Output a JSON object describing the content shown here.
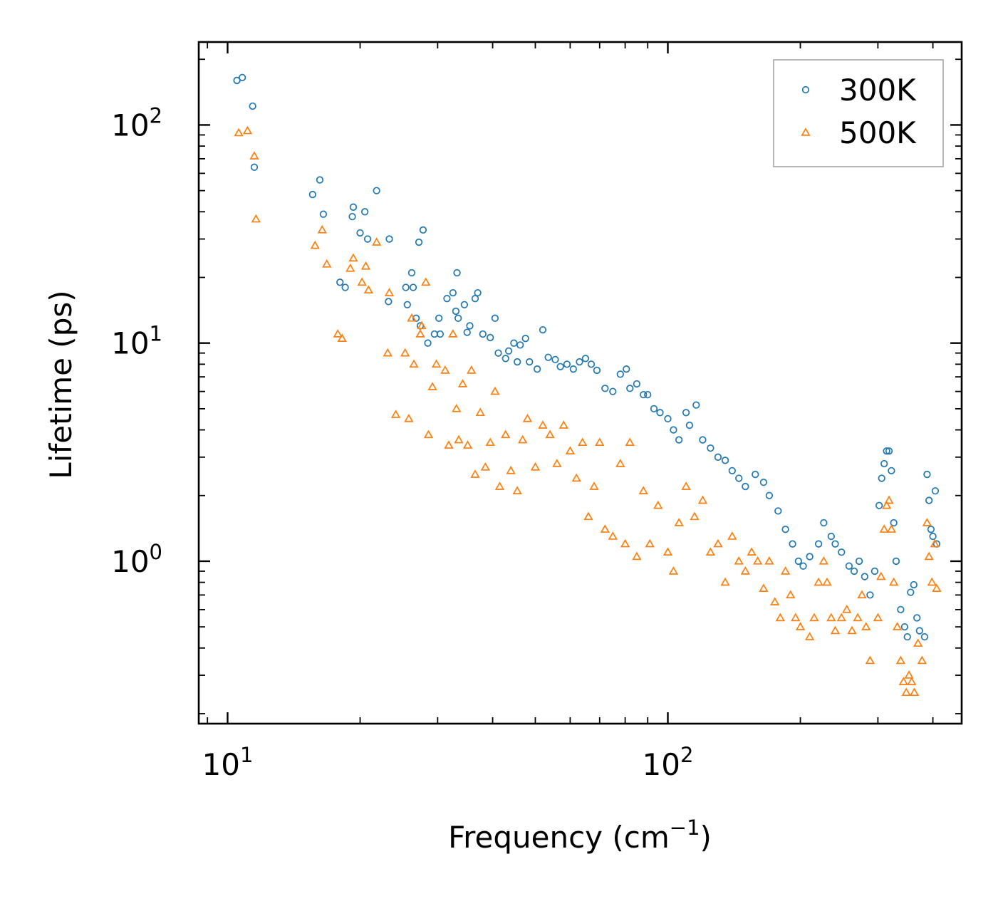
{
  "chart_data": {
    "type": "scatter",
    "title": "",
    "xlabel": "Frequency (cm",
    "xlabel_sup": "−1",
    "xlabel_end": ")",
    "ylabel": "Lifetime (ps)",
    "xscale": "log",
    "yscale": "log",
    "xlim": [
      8.6,
      465
    ],
    "ylim": [
      0.18,
      240
    ],
    "x_ticks": [
      {
        "value": 10,
        "base": "10",
        "exp": "1"
      },
      {
        "value": 100,
        "base": "10",
        "exp": "2"
      }
    ],
    "y_ticks": [
      {
        "value": 1,
        "base": "10",
        "exp": "0"
      },
      {
        "value": 10,
        "base": "10",
        "exp": "1"
      },
      {
        "value": 100,
        "base": "10",
        "exp": "2"
      }
    ],
    "legend_position": "top-right",
    "series": [
      {
        "name": "300K",
        "color": "#1f77b4",
        "marker": "circle-open",
        "points": [
          [
            10.5,
            160
          ],
          [
            10.8,
            165
          ],
          [
            11.4,
            122
          ],
          [
            11.5,
            64
          ],
          [
            15.6,
            48
          ],
          [
            16.2,
            56
          ],
          [
            16.5,
            39
          ],
          [
            18,
            19
          ],
          [
            18.5,
            18
          ],
          [
            19.2,
            38
          ],
          [
            19.3,
            42
          ],
          [
            20,
            32
          ],
          [
            20.5,
            40
          ],
          [
            20.8,
            30
          ],
          [
            21.8,
            50
          ],
          [
            23.2,
            15.5
          ],
          [
            23.3,
            30
          ],
          [
            25.4,
            18
          ],
          [
            25.6,
            15
          ],
          [
            26.2,
            21
          ],
          [
            26.4,
            18
          ],
          [
            26.8,
            13
          ],
          [
            27.2,
            29
          ],
          [
            27.4,
            12
          ],
          [
            27.8,
            33
          ],
          [
            28.5,
            10
          ],
          [
            29.5,
            11
          ],
          [
            30.2,
            13
          ],
          [
            30.4,
            11
          ],
          [
            31.5,
            16
          ],
          [
            32.5,
            17
          ],
          [
            33,
            14
          ],
          [
            33.2,
            21
          ],
          [
            33.4,
            13
          ],
          [
            34.5,
            15
          ],
          [
            35,
            11.2
          ],
          [
            35.5,
            12
          ],
          [
            36.5,
            16
          ],
          [
            37,
            17
          ],
          [
            38,
            11
          ],
          [
            39.5,
            10.6
          ],
          [
            40.5,
            13
          ],
          [
            41.2,
            9
          ],
          [
            42.8,
            8.5
          ],
          [
            43.5,
            9.2
          ],
          [
            44.7,
            10
          ],
          [
            45.5,
            8.2
          ],
          [
            46.2,
            9.8
          ],
          [
            47.5,
            10.5
          ],
          [
            48.5,
            8.2
          ],
          [
            50.5,
            7.6
          ],
          [
            52,
            11.5
          ],
          [
            53.5,
            8.6
          ],
          [
            55.5,
            8.4
          ],
          [
            57,
            7.8
          ],
          [
            59,
            8
          ],
          [
            61,
            7.6
          ],
          [
            63,
            8.2
          ],
          [
            65,
            8.5
          ],
          [
            67,
            8
          ],
          [
            69,
            7.5
          ],
          [
            72,
            6.2
          ],
          [
            75,
            6
          ],
          [
            78,
            7.2
          ],
          [
            80.5,
            7.6
          ],
          [
            82,
            6.2
          ],
          [
            85,
            6.5
          ],
          [
            88,
            5.8
          ],
          [
            90,
            5.8
          ],
          [
            93,
            5
          ],
          [
            96,
            4.8
          ],
          [
            100,
            4.5
          ],
          [
            103,
            4
          ],
          [
            106,
            3.6
          ],
          [
            110,
            4.8
          ],
          [
            112,
            4.2
          ],
          [
            116,
            5.2
          ],
          [
            120,
            3.6
          ],
          [
            125,
            3.3
          ],
          [
            130,
            3
          ],
          [
            135,
            2.9
          ],
          [
            140,
            2.6
          ],
          [
            145,
            2.4
          ],
          [
            150,
            2.2
          ],
          [
            158,
            2.5
          ],
          [
            165,
            2.3
          ],
          [
            170,
            2
          ],
          [
            178,
            1.7
          ],
          [
            185,
            1.4
          ],
          [
            192,
            1.2
          ],
          [
            198,
            1.0
          ],
          [
            203,
            0.95
          ],
          [
            210,
            1.05
          ],
          [
            220,
            1.2
          ],
          [
            226,
            1.5
          ],
          [
            235,
            1.3
          ],
          [
            240,
            1.2
          ],
          [
            248,
            1.1
          ],
          [
            258,
            0.95
          ],
          [
            265,
            0.9
          ],
          [
            272,
            1.0
          ],
          [
            280,
            0.85
          ],
          [
            288,
            0.7
          ],
          [
            295,
            0.9
          ],
          [
            302,
            1.8
          ],
          [
            306,
            2.4
          ],
          [
            310,
            2.8
          ],
          [
            314,
            3.2
          ],
          [
            318,
            3.2
          ],
          [
            322,
            2.6
          ],
          [
            326,
            1.5
          ],
          [
            330,
            1.0
          ],
          [
            338,
            0.6
          ],
          [
            345,
            0.5
          ],
          [
            350,
            0.45
          ],
          [
            356,
            0.72
          ],
          [
            362,
            0.78
          ],
          [
            368,
            0.55
          ],
          [
            373,
            0.48
          ],
          [
            383,
            0.45
          ],
          [
            388,
            2.5
          ],
          [
            392,
            1.9
          ],
          [
            396,
            1.4
          ],
          [
            400,
            1.3
          ],
          [
            405,
            2.1
          ],
          [
            408,
            1.2
          ]
        ]
      },
      {
        "name": "500K",
        "color": "#ff7f0e",
        "marker": "triangle-open",
        "points": [
          [
            10.6,
            92
          ],
          [
            11.1,
            94
          ],
          [
            11.5,
            72
          ],
          [
            11.6,
            37
          ],
          [
            15.8,
            28
          ],
          [
            16.4,
            33
          ],
          [
            16.8,
            23
          ],
          [
            17.8,
            11
          ],
          [
            18.2,
            10.5
          ],
          [
            19,
            22
          ],
          [
            19.3,
            24.5
          ],
          [
            20.2,
            19
          ],
          [
            20.6,
            22.5
          ],
          [
            20.9,
            17.5
          ],
          [
            21.8,
            29
          ],
          [
            23.1,
            9
          ],
          [
            23.3,
            17
          ],
          [
            24.1,
            4.7
          ],
          [
            25.3,
            9
          ],
          [
            25.8,
            4.5
          ],
          [
            26.2,
            13
          ],
          [
            26.5,
            8
          ],
          [
            27.4,
            11
          ],
          [
            27.6,
            12
          ],
          [
            28.2,
            19
          ],
          [
            28.6,
            3.8
          ],
          [
            29.2,
            6.3
          ],
          [
            29.8,
            8
          ],
          [
            31.2,
            7.5
          ],
          [
            31.8,
            3.4
          ],
          [
            32.5,
            11
          ],
          [
            33.1,
            5
          ],
          [
            33.5,
            3.6
          ],
          [
            34.2,
            6.5
          ],
          [
            35.1,
            3.4
          ],
          [
            35.8,
            7.5
          ],
          [
            36.5,
            2.5
          ],
          [
            37.5,
            4.8
          ],
          [
            38.5,
            2.7
          ],
          [
            39.5,
            3.5
          ],
          [
            40.5,
            6
          ],
          [
            41.5,
            2.2
          ],
          [
            42.8,
            3.8
          ],
          [
            44,
            2.6
          ],
          [
            45.5,
            2.1
          ],
          [
            46.8,
            3.6
          ],
          [
            48,
            4.5
          ],
          [
            50,
            2.7
          ],
          [
            52,
            4.2
          ],
          [
            54,
            3.8
          ],
          [
            56,
            2.8
          ],
          [
            58,
            4.2
          ],
          [
            60,
            3.2
          ],
          [
            62,
            2.4
          ],
          [
            64,
            3.5
          ],
          [
            66,
            1.6
          ],
          [
            68,
            2.2
          ],
          [
            70,
            3.5
          ],
          [
            72,
            1.4
          ],
          [
            75,
            1.3
          ],
          [
            78,
            2.8
          ],
          [
            80,
            1.2
          ],
          [
            82,
            3.5
          ],
          [
            85,
            1.05
          ],
          [
            88,
            2.1
          ],
          [
            91,
            1.2
          ],
          [
            95,
            1.8
          ],
          [
            100,
            1.1
          ],
          [
            103,
            0.9
          ],
          [
            106,
            1.5
          ],
          [
            110,
            2.2
          ],
          [
            115,
            1.6
          ],
          [
            120,
            1.9
          ],
          [
            125,
            1.1
          ],
          [
            130,
            1.2
          ],
          [
            135,
            0.8
          ],
          [
            140,
            1.3
          ],
          [
            145,
            1.0
          ],
          [
            150,
            0.9
          ],
          [
            155,
            1.1
          ],
          [
            160,
            1.0
          ],
          [
            165,
            0.75
          ],
          [
            170,
            1.0
          ],
          [
            175,
            0.65
          ],
          [
            180,
            0.55
          ],
          [
            185,
            0.9
          ],
          [
            190,
            0.7
          ],
          [
            195,
            0.55
          ],
          [
            200,
            0.5
          ],
          [
            210,
            0.45
          ],
          [
            215,
            0.55
          ],
          [
            220,
            0.8
          ],
          [
            226,
            1.0
          ],
          [
            230,
            0.8
          ],
          [
            235,
            0.55
          ],
          [
            240,
            0.48
          ],
          [
            248,
            0.55
          ],
          [
            255,
            0.6
          ],
          [
            262,
            0.48
          ],
          [
            270,
            0.55
          ],
          [
            276,
            0.7
          ],
          [
            282,
            0.5
          ],
          [
            288,
            0.35
          ],
          [
            300,
            0.55
          ],
          [
            305,
            0.85
          ],
          [
            310,
            1.4
          ],
          [
            314,
            1.8
          ],
          [
            318,
            1.9
          ],
          [
            322,
            1.4
          ],
          [
            326,
            0.8
          ],
          [
            332,
            0.5
          ],
          [
            338,
            0.35
          ],
          [
            343,
            0.28
          ],
          [
            348,
            0.25
          ],
          [
            353,
            0.3
          ],
          [
            358,
            0.28
          ],
          [
            363,
            0.25
          ],
          [
            370,
            0.42
          ],
          [
            378,
            0.35
          ],
          [
            388,
            1.5
          ],
          [
            392,
            1.05
          ],
          [
            398,
            0.8
          ],
          [
            404,
            1.2
          ],
          [
            408,
            0.75
          ]
        ]
      }
    ]
  }
}
